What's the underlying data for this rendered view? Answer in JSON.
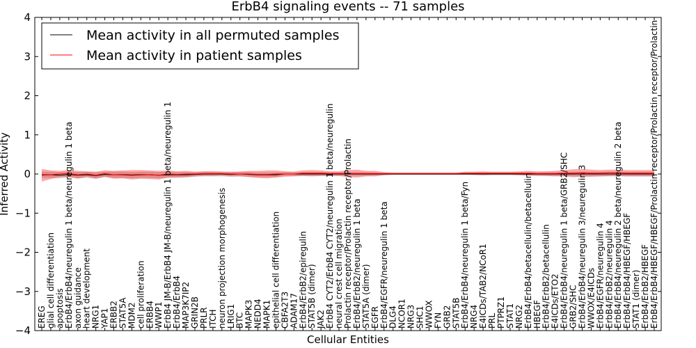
{
  "chart_data": {
    "type": "line",
    "title": "ErbB4 signaling events -- 71 samples",
    "xlabel": "Cellular Entities",
    "ylabel": "Inferred Activity",
    "ylim": [
      -4,
      4
    ],
    "yticks": [
      -4,
      -3,
      -2,
      -1,
      0,
      1,
      2,
      3,
      4
    ],
    "legend_position": "top-left",
    "categories": [
      "EREG",
      "glial cell differentiation",
      "apoptosis",
      "ErbB4/ErbB4/neuregulin 1 beta/neuregulin 1 beta",
      "axon guidance",
      "heart development",
      "NRG1",
      "YAP1",
      "ERBB2",
      "STAT5A",
      "MDM2",
      "cell proliferation",
      "ERBB4",
      "WWP1",
      "ErbB4 JM-B/ErbB4 JM-B/neuregulin 1 beta/neuregulin 1",
      "ErbB4/ErbB4",
      "MAP3K7IP2",
      "GRIN2B",
      "PRLR",
      "ITCH",
      "neuron projection morphogenesis",
      "LRIG1",
      "BTC",
      "MAPK3",
      "NEDD4",
      "MAPK1",
      "epithelial cell differentiation",
      "CBFA2T3",
      "ADAM17",
      "ErbB4/ErbB2/epiregulin",
      "STAT5B (dimer)",
      "JAK2",
      "ErbB4 CYT2/ErbB4 CYT2/neuregulin 1 beta/neuregulin",
      "neural crest cell migration",
      "Prolactin receptor/Prolactin receptor/Prolactin",
      "ErbB4/ErbB2/neuregulin 1 beta",
      "STAT5A (dimer)",
      "EGFR",
      "ErbB4/EGFR/neuregulin 1 beta",
      "DLG4",
      "NCOR1",
      "NRG3",
      "SHC1",
      "WWOX",
      "FYN",
      "GRB2",
      "STAT5B",
      "ErbB4/ErbB4/neuregulin 1 beta/Fyn",
      "NRG4",
      "E4ICDs/TAB2/NCoR1",
      "PRL",
      "PTPRZ1",
      "STAT1",
      "NRG2",
      "ErbB4/ErbB4/betacellulin/betacellulin",
      "HBEGF",
      "ErbB4/ErbB2/betacellulin",
      "E4ICDs/ETO2",
      "ErbB4/ErbB4/neuregulin 1 beta/GRB2/SHC",
      "GRB2/SHC",
      "ErbB4/ErbB4/neuregulin 3/neuregulin 3",
      "WWOX/E4ICDs",
      "ErbB4/EGFR/neuregulin 4",
      "ErbB4/ErbB2/neuregulin 4",
      "ErbB4/ErbB4/neuregulin 2 beta/neuregulin 2 beta",
      "ErbB4/ErbB4/HBEGF/HBEGF",
      "STAT1 (dimer)",
      "ErbB4/ErbB2/HBEGF",
      "ErbB4/ErbB4/HBEGF/HBEGF/Prolactin receptor/Prolactin receptor/Prolactin"
    ],
    "series": [
      {
        "name": "Mean activity in all permuted samples",
        "color": "#000000",
        "values": [
          -0.02,
          -0.02,
          -0.03,
          -0.01,
          -0.03,
          -0.02,
          -0.04,
          -0.01,
          -0.02,
          -0.02,
          -0.03,
          -0.02,
          -0.02,
          -0.03,
          -0.02,
          -0.02,
          -0.02,
          -0.01,
          0.0,
          0.0,
          0.0,
          -0.01,
          0.0,
          -0.01,
          -0.02,
          -0.02,
          -0.02,
          0.0,
          0.0,
          0.0,
          0.0,
          0.0,
          0.0,
          0.0,
          0.0,
          0.0,
          0.0,
          0.0,
          0.0,
          0.0,
          0.0,
          0.0,
          0.0,
          0.0,
          0.0,
          0.0,
          0.0,
          0.0,
          0.0,
          0.0,
          0.0,
          0.0,
          0.0,
          0.0,
          0.0,
          0.0,
          0.0,
          0.0,
          0.0,
          0.0,
          0.0,
          0.0,
          0.0,
          0.0,
          0.0,
          0.0,
          0.0,
          0.0,
          0.0
        ],
        "band": [
          0.08,
          0.08,
          0.08,
          0.07,
          0.08,
          0.08,
          0.08,
          0.07,
          0.08,
          0.08,
          0.08,
          0.08,
          0.08,
          0.08,
          0.08,
          0.07,
          0.07,
          0.06,
          0.06,
          0.06,
          0.06,
          0.06,
          0.06,
          0.06,
          0.06,
          0.06,
          0.06,
          0.05,
          0.05,
          0.05,
          0.05,
          0.05,
          0.05,
          0.05,
          0.05,
          0.05,
          0.05,
          0.04,
          0.03,
          0.02,
          0.02,
          0.02,
          0.02,
          0.02,
          0.02,
          0.02,
          0.02,
          0.02,
          0.03,
          0.03,
          0.03,
          0.03,
          0.03,
          0.03,
          0.04,
          0.04,
          0.05,
          0.05,
          0.05,
          0.06,
          0.06,
          0.06,
          0.06,
          0.06,
          0.06,
          0.06,
          0.06,
          0.06,
          0.06
        ]
      },
      {
        "name": "Mean activity in patient samples",
        "color": "#ff0000",
        "values": [
          -0.03,
          -0.02,
          0.0,
          0.01,
          -0.02,
          0.0,
          -0.03,
          0.01,
          -0.02,
          -0.01,
          -0.02,
          -0.01,
          -0.02,
          -0.03,
          0.0,
          -0.01,
          0.0,
          0.0,
          0.01,
          0.01,
          0.01,
          0.0,
          0.0,
          0.0,
          -0.01,
          -0.01,
          0.0,
          0.0,
          0.0,
          0.02,
          0.02,
          0.02,
          0.01,
          0.01,
          0.01,
          0.01,
          0.01,
          0.01,
          0.01,
          0.01,
          0.01,
          0.01,
          0.01,
          0.01,
          0.01,
          0.01,
          0.01,
          0.02,
          0.02,
          0.02,
          0.02,
          0.02,
          0.02,
          0.02,
          0.02,
          0.01,
          0.01,
          0.01,
          0.02,
          0.02,
          0.03,
          0.02,
          0.02,
          0.03,
          0.03,
          0.02,
          0.02,
          0.02,
          0.02
        ],
        "band": [
          0.16,
          0.11,
          0.08,
          0.09,
          0.1,
          0.07,
          0.09,
          0.08,
          0.1,
          0.1,
          0.12,
          0.11,
          0.11,
          0.11,
          0.09,
          0.08,
          0.08,
          0.06,
          0.06,
          0.06,
          0.05,
          0.06,
          0.06,
          0.08,
          0.09,
          0.1,
          0.09,
          0.07,
          0.06,
          0.07,
          0.08,
          0.07,
          0.06,
          0.06,
          0.09,
          0.1,
          0.07,
          0.07,
          0.04,
          0.03,
          0.03,
          0.03,
          0.03,
          0.03,
          0.03,
          0.03,
          0.03,
          0.04,
          0.04,
          0.05,
          0.04,
          0.04,
          0.04,
          0.05,
          0.06,
          0.06,
          0.06,
          0.07,
          0.08,
          0.1,
          0.1,
          0.09,
          0.08,
          0.08,
          0.08,
          0.08,
          0.08,
          0.08,
          0.08
        ]
      }
    ]
  }
}
